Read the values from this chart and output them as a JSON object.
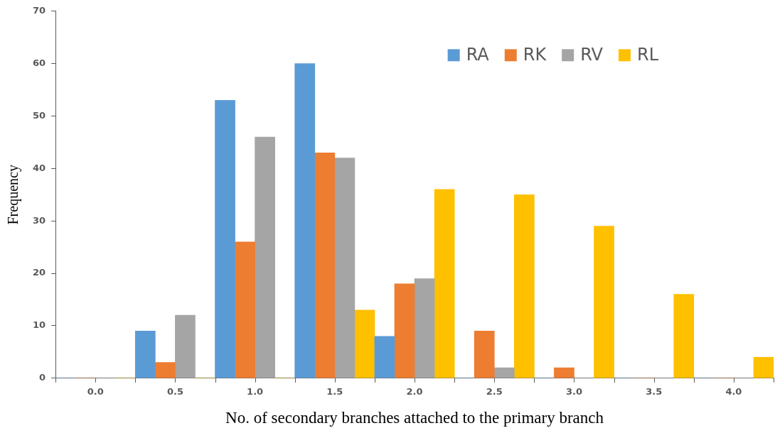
{
  "chart_data": {
    "type": "bar",
    "xlabel": "No. of secondary branches attached to the primary branch",
    "ylabel": "Frequency",
    "categories": [
      "0.0",
      "0.5",
      "1.0",
      "1.5",
      "2.0",
      "2.5",
      "3.0",
      "3.5",
      "4.0"
    ],
    "series": [
      {
        "name": "RA",
        "color": "#5b9bd5",
        "values": [
          0,
          9,
          53,
          60,
          8,
          0,
          0,
          0,
          0
        ]
      },
      {
        "name": "RK",
        "color": "#ed7d31",
        "values": [
          0,
          3,
          26,
          43,
          18,
          9,
          2,
          0,
          0
        ]
      },
      {
        "name": "RV",
        "color": "#a5a5a5",
        "values": [
          0,
          12,
          46,
          42,
          19,
          2,
          0,
          0,
          0
        ]
      },
      {
        "name": "RL",
        "color": "#ffc000",
        "values": [
          0,
          0,
          0,
          13,
          36,
          35,
          29,
          16,
          4
        ]
      }
    ],
    "ylim": [
      0,
      70
    ],
    "yticks": [
      0,
      10,
      20,
      30,
      40,
      50,
      60,
      70
    ],
    "grid": false,
    "legend": "top right"
  }
}
